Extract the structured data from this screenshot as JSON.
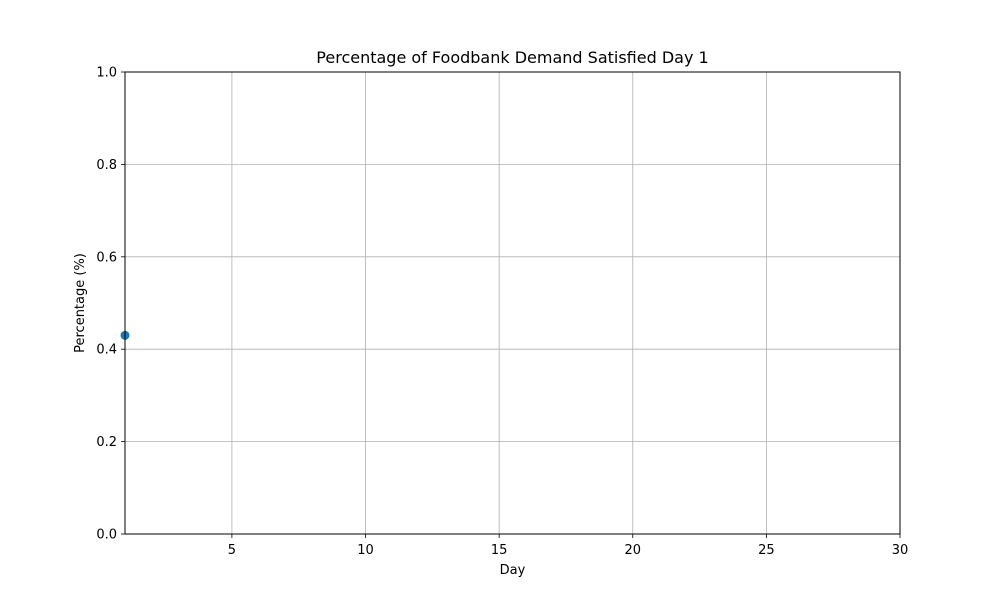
{
  "chart_data": {
    "type": "scatter",
    "title": "Percentage of Foodbank Demand Satisfied Day 1",
    "xlabel": "Day",
    "ylabel": "Percentage (%)",
    "xlim": [
      1,
      30
    ],
    "ylim": [
      0.0,
      1.0
    ],
    "x_ticks": [
      5,
      10,
      15,
      20,
      25,
      30
    ],
    "y_ticks": [
      0.0,
      0.2,
      0.4,
      0.6,
      0.8,
      1.0
    ],
    "x_tick_labels": [
      "5",
      "10",
      "15",
      "20",
      "25",
      "30"
    ],
    "y_tick_labels": [
      "0.0",
      "0.2",
      "0.4",
      "0.6",
      "0.8",
      "1.0"
    ],
    "grid": true,
    "series": [
      {
        "x": [
          1
        ],
        "y": [
          0.43
        ],
        "color": "#1f77b4"
      }
    ]
  }
}
